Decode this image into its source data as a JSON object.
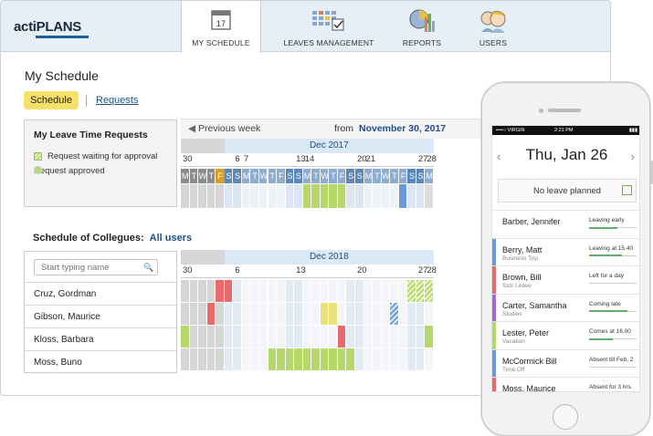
{
  "app": {
    "logo": "actiPLANS",
    "tabs": [
      {
        "label": "MY SCHEDULE",
        "icon": "calendar-icon",
        "badge": "17",
        "active": true
      },
      {
        "label": "LEAVES MANAGEMENT",
        "icon": "leave-grid-icon",
        "active": false
      },
      {
        "label": "REPORTS",
        "icon": "reports-chart-icon",
        "active": false
      },
      {
        "label": "USERS",
        "icon": "users-icon",
        "active": false
      }
    ]
  },
  "page": {
    "title": "My Schedule",
    "schedule_btn": "Schedule",
    "requests_link": "Requests"
  },
  "legend": {
    "title": "My Leave Time Requests",
    "waiting": "Request waiting for approval",
    "approved": "Request approved"
  },
  "my_calendar": {
    "prev": "Previous week",
    "from_label": "from",
    "from_date": "November 30, 2017",
    "month": "Dec 2017",
    "day_numbers": [
      {
        "text": "30",
        "col": 0
      },
      {
        "text": "6",
        "col": 6
      },
      {
        "text": "7",
        "col": 7
      },
      {
        "text": "13",
        "col": 13
      },
      {
        "text": "14",
        "col": 14
      },
      {
        "text": "20",
        "col": 20
      },
      {
        "text": "21",
        "col": 21
      },
      {
        "text": "27",
        "col": 27
      },
      {
        "text": "28",
        "col": 28
      }
    ],
    "weekdays": [
      "M",
      "T",
      "W",
      "T",
      "F",
      "S",
      "S",
      "M",
      "T",
      "W",
      "T",
      "F",
      "S",
      "S",
      "M",
      "T",
      "W",
      "T",
      "F",
      "S",
      "S",
      "M",
      "T",
      "W",
      "T",
      "F",
      "S",
      "S",
      "M"
    ]
  },
  "colleagues": {
    "title": "Schedule of Collegues:",
    "filter": "All users",
    "search_placeholder": "Start typing name",
    "month": "Dec 2018",
    "day_numbers": [
      {
        "text": "30",
        "col": 0
      },
      {
        "text": "6",
        "col": 6
      },
      {
        "text": "13",
        "col": 13
      },
      {
        "text": "20",
        "col": 20
      },
      {
        "text": "27",
        "col": 27
      },
      {
        "text": "28",
        "col": 28
      }
    ],
    "people": [
      "Cruz, Gordman",
      "Gibson, Maurice",
      "Kloss, Barbara",
      "Moss, Buno"
    ]
  },
  "colors": {
    "approved": "#b6d86a",
    "sick": "#e86a6a",
    "vacation_pending": "#e8e07a",
    "weekend": "#9ab6d4",
    "today": "#d4a02a",
    "business": "#6a9ad8"
  },
  "mobile": {
    "carrier": "••••○ VIRGIN",
    "time": "2:21 PM",
    "date": "Thu, Jan 26",
    "no_leave": "No leave planned",
    "rows": [
      {
        "name": "Barber, Jennifer",
        "sub": "",
        "status": "Leaving early",
        "color": "",
        "progress": 0.6
      },
      {
        "name": "Berry, Matt",
        "sub": "Business Trip",
        "status": "Leaving at 15.40",
        "color": "#6a9ad8",
        "progress": 0.7
      },
      {
        "name": "Brown, Bill",
        "sub": "Sick Leave",
        "status": "Left for a day",
        "color": "#e86a6a",
        "progress": 0
      },
      {
        "name": "Carter, Samantha",
        "sub": "Studies",
        "status": "Coming late",
        "color": "#9a6ad0",
        "progress": 0.8
      },
      {
        "name": "Lester, Peter",
        "sub": "Vacation",
        "status": "Comes at 16.00",
        "color": "#b6d86a",
        "progress": 0.5
      },
      {
        "name": "McCormick Bill",
        "sub": "Time Off",
        "status": "Absent till Feb, 2",
        "color": "#6a9ad8",
        "progress": 0
      },
      {
        "name": "Moss, Maurice",
        "sub": "",
        "status": "Absent for 3 hrs",
        "color": "#e86a6a",
        "progress": 0
      }
    ]
  }
}
